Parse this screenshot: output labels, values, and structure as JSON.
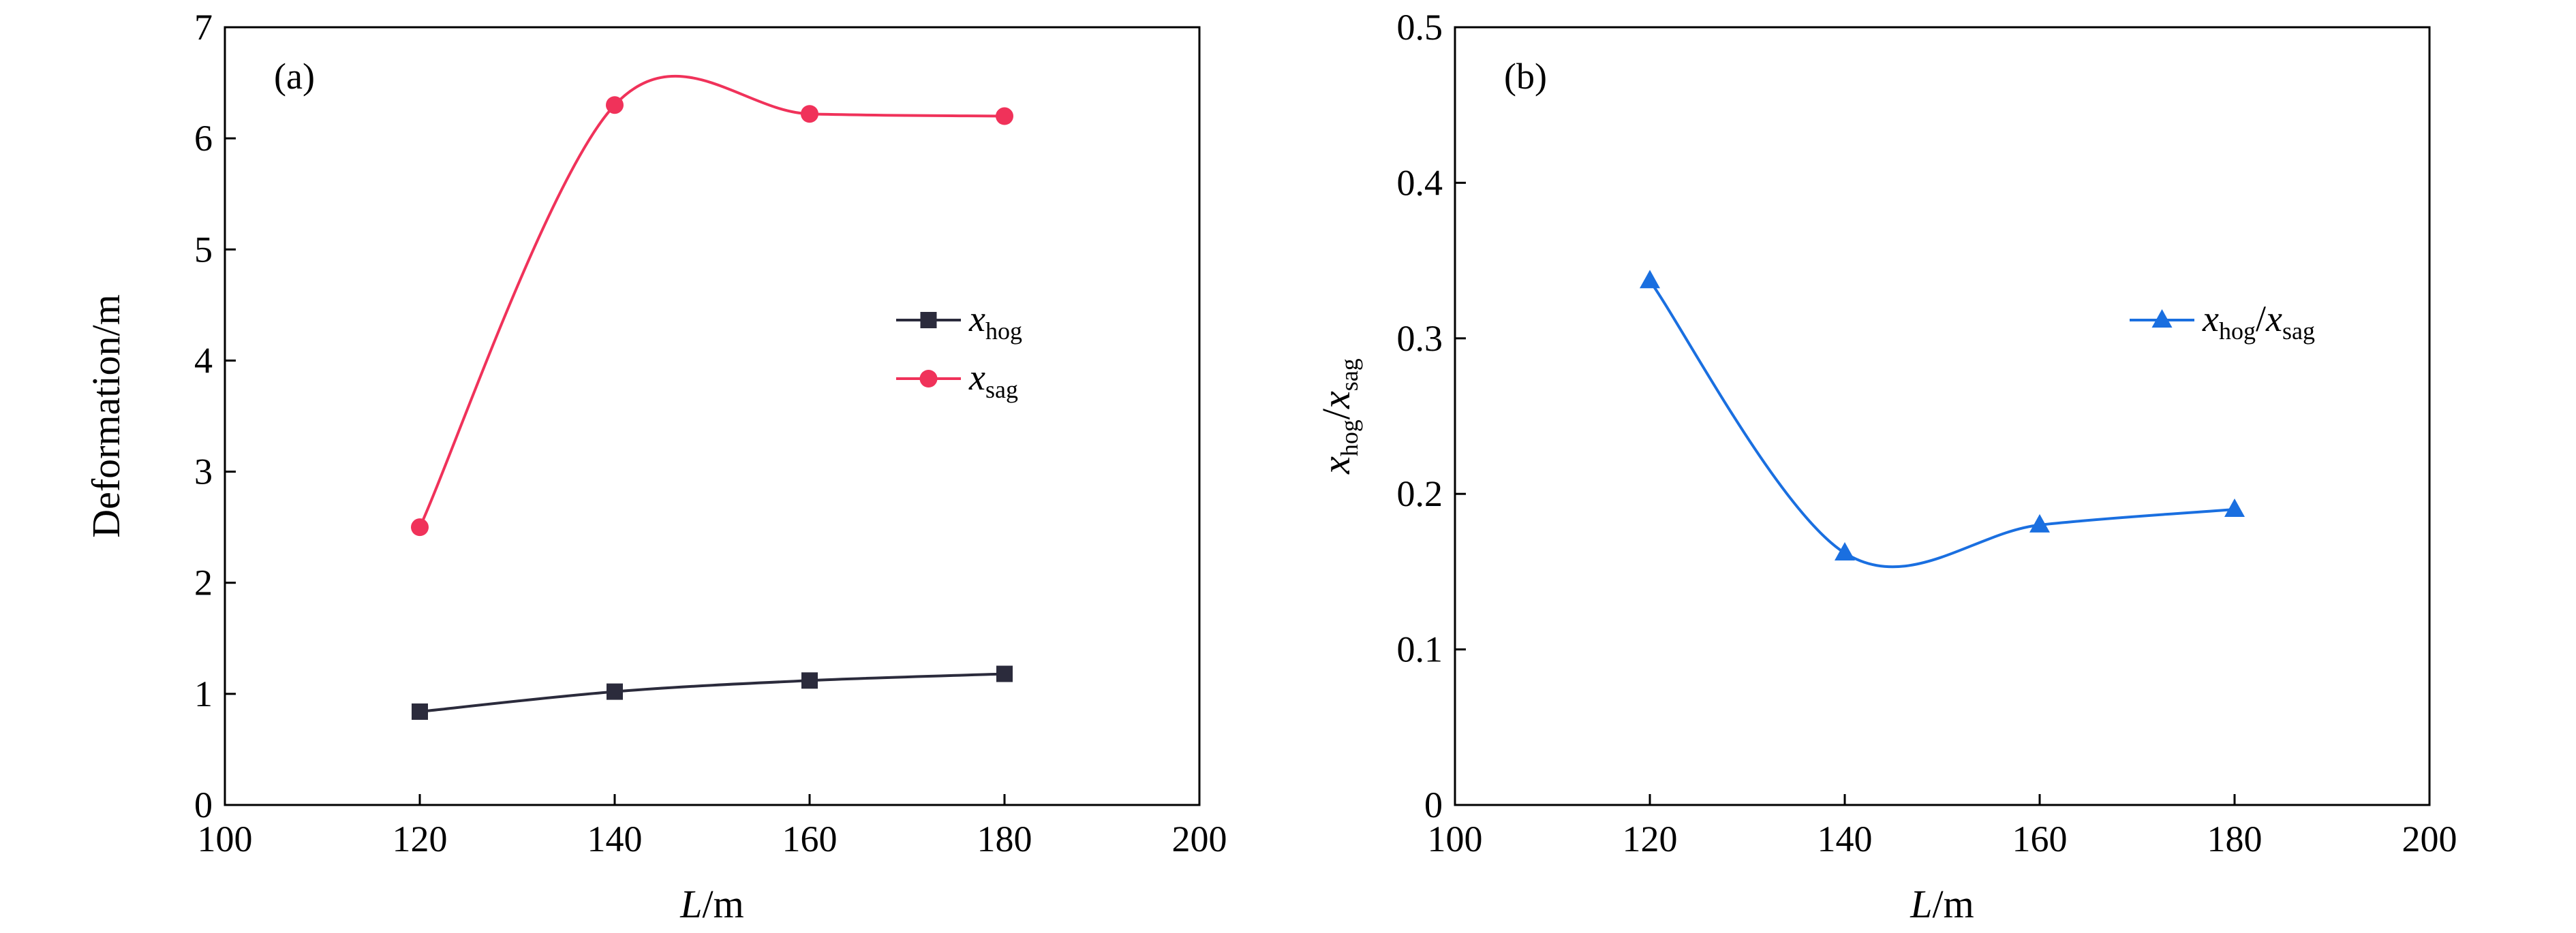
{
  "chart_data": [
    {
      "type": "line",
      "panel_label": "(a)",
      "xlabel": {
        "italic": "L",
        "rest": "/m"
      },
      "ylabel": "Deformation/m",
      "xlim": [
        100,
        200
      ],
      "ylim": [
        0,
        7
      ],
      "xticks": [
        "100",
        "120",
        "140",
        "160",
        "180",
        "200"
      ],
      "yticks": [
        "0",
        "1",
        "2",
        "3",
        "4",
        "5",
        "6",
        "7"
      ],
      "x": [
        120,
        140,
        160,
        180
      ],
      "legend_position": "center-right",
      "smooth": true,
      "series": [
        {
          "name": {
            "base": "x",
            "sub": "hog"
          },
          "values": [
            0.84,
            1.02,
            1.12,
            1.18
          ],
          "marker": "square",
          "color": "#2b2b3c"
        },
        {
          "name": {
            "base": "x",
            "sub": "sag"
          },
          "values": [
            2.5,
            6.3,
            6.22,
            6.2
          ],
          "marker": "circle",
          "color": "#f0325a"
        }
      ]
    },
    {
      "type": "line",
      "panel_label": "(b)",
      "xlabel": {
        "italic": "L",
        "rest": "/m"
      },
      "ylabel": {
        "base1": "x",
        "sub1": "hog",
        "sep": "/",
        "base2": "x",
        "sub2": "sag"
      },
      "xlim": [
        100,
        200
      ],
      "ylim": [
        0,
        0.5
      ],
      "xticks": [
        "100",
        "120",
        "140",
        "160",
        "180",
        "200"
      ],
      "yticks": [
        "0",
        "0.1",
        "0.2",
        "0.3",
        "0.4",
        "0.5"
      ],
      "x": [
        120,
        140,
        160,
        180
      ],
      "legend_position": "upper-right",
      "smooth": true,
      "series": [
        {
          "name": {
            "base1": "x",
            "sub1": "hog",
            "sep": "/",
            "base2": "x",
            "sub2": "sag"
          },
          "values": [
            0.337,
            0.162,
            0.18,
            0.19
          ],
          "marker": "triangle",
          "color": "#1a6fe0"
        }
      ]
    }
  ]
}
